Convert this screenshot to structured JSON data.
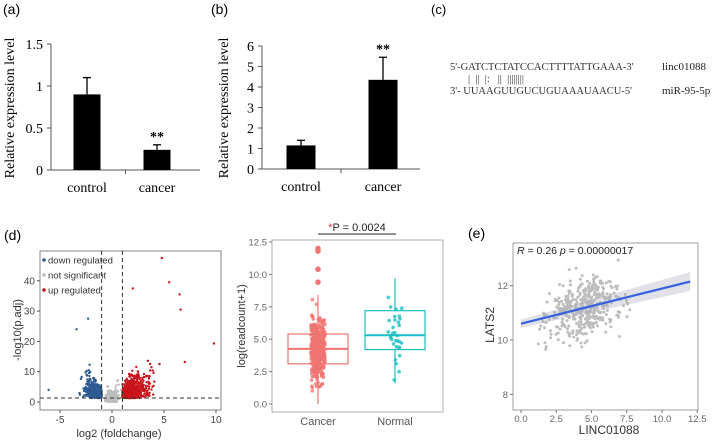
{
  "panel_labels": {
    "a": "(a)",
    "b": "(b)",
    "c": "(c)",
    "d": "(d)",
    "e": "(e)"
  },
  "colors": {
    "bar": "#000000",
    "down": "#2e5a94",
    "up": "#c8141b",
    "ns": "#bdbdbd",
    "cancer": "#f07470",
    "normal": "#18bfc4",
    "fit": "#3461e0",
    "point": "#bdbdbd"
  },
  "sequence": {
    "top": "5'-GATCTCTATCCACTTTTATTGAAA-3'",
    "pairs": "|  ||  |:   ||  ||||||||",
    "bottom": "3'- UUAAGUUGUCUGUAAAUAACU-5'",
    "top_label": "linc01088",
    "bottom_label": "miR-95-5p"
  },
  "chart_data": [
    {
      "type": "bar",
      "panel": "(a)",
      "title": "",
      "xlabel": "",
      "ylabel": "Relative expression level",
      "categories": [
        "control",
        "cancer"
      ],
      "values": [
        0.9,
        0.24
      ],
      "errors": [
        0.2,
        0.06
      ],
      "significance": [
        "",
        "**"
      ],
      "ylim": [
        0,
        1.5
      ],
      "yticks": [
        "0",
        "0.5",
        "1",
        "1.5"
      ],
      "grid": false
    },
    {
      "type": "bar",
      "panel": "(b)",
      "title": "",
      "xlabel": "",
      "ylabel": "Relative expression level",
      "categories": [
        "control",
        "cancer"
      ],
      "values": [
        1.15,
        4.35
      ],
      "errors": [
        0.25,
        1.1
      ],
      "significance": [
        "",
        "**"
      ],
      "ylim": [
        0,
        6
      ],
      "yticks": [
        "0",
        "1",
        "2",
        "3",
        "4",
        "5",
        "6"
      ],
      "grid": false
    },
    {
      "type": "scatter",
      "panel": "(d) volcano",
      "title": "",
      "xlabel": "log2 (foldchange)",
      "ylabel": "-log10(p.adj)",
      "xlim": [
        -6.5,
        10.5
      ],
      "ylim": [
        -2,
        50
      ],
      "xticks": [
        "-5",
        "0",
        "5",
        "10"
      ],
      "yticks": [
        "0",
        "10",
        "20",
        "30",
        "40"
      ],
      "legend": {
        "placement": "top-left",
        "entries": [
          "down regulated",
          "not significant",
          "up regulated"
        ]
      },
      "thresholds": {
        "log2fc": [
          -1,
          1
        ],
        "neg_log10_padj": 1.3
      },
      "series": [
        {
          "name": "down regulated",
          "x_range": [
            -6.1,
            -1
          ],
          "y_range": [
            1.3,
            27.5
          ],
          "approx_count": 350
        },
        {
          "name": "not significant",
          "x_range": [
            -1,
            1
          ],
          "y_range": [
            0,
            10
          ],
          "approx_count": 250
        },
        {
          "name": "up regulated",
          "x_range": [
            1,
            9.8
          ],
          "y_range": [
            1.3,
            47.5
          ],
          "approx_count": 800
        }
      ],
      "highlighted_points": [
        [
          4.8,
          47.5
        ],
        [
          5.5,
          39.5
        ],
        [
          6.5,
          35.5
        ],
        [
          2.0,
          37.5
        ],
        [
          6.6,
          30.5
        ],
        [
          9.8,
          19.3
        ],
        [
          7.0,
          13.2
        ],
        [
          -6.1,
          4
        ],
        [
          -3.4,
          24
        ],
        [
          -2.3,
          27.5
        ]
      ]
    },
    {
      "type": "box",
      "panel": "(d) boxplot",
      "title": "*P = 0.0024",
      "xlabel": "",
      "ylabel": "log(readcount+1)",
      "categories": [
        "Cancer",
        "Normal"
      ],
      "ylim": [
        -0.3,
        12.8
      ],
      "yticks": [
        "0.0",
        "2.5",
        "5.0",
        "7.5",
        "10.0",
        "12.5"
      ],
      "series": [
        {
          "name": "Cancer",
          "min": 0.0,
          "q1": 3.1,
          "median": 4.25,
          "q3": 5.4,
          "max": 8.4,
          "outliers": [
            9.4,
            10.4,
            11.8,
            12.0
          ],
          "n": 350
        },
        {
          "name": "Normal",
          "min": 1.6,
          "q1": 4.2,
          "median": 5.3,
          "q3": 7.2,
          "max": 9.7,
          "outliers": [],
          "n": 32
        }
      ]
    },
    {
      "type": "scatter",
      "panel": "(e)",
      "title": "",
      "xlabel": "LINC01088",
      "ylabel": "LATS2",
      "annotation": {
        "r_label": "R",
        "r_value": "= 0.26",
        "p_label": "p",
        "p_value": "= 0.00000017"
      },
      "xlim": [
        -0.6,
        12.6
      ],
      "ylim": [
        7.4,
        13.2
      ],
      "xticks": [
        "0.0",
        "2.5",
        "5.0",
        "7.5",
        "10.0",
        "12.5"
      ],
      "yticks": [
        "8",
        "10",
        "12"
      ],
      "fit_line": {
        "x": [
          0,
          12
        ],
        "y": [
          10.6,
          12.15
        ]
      },
      "approx_points": 420,
      "point_x_mean": 4.5,
      "point_y_mean": 11.2
    }
  ]
}
